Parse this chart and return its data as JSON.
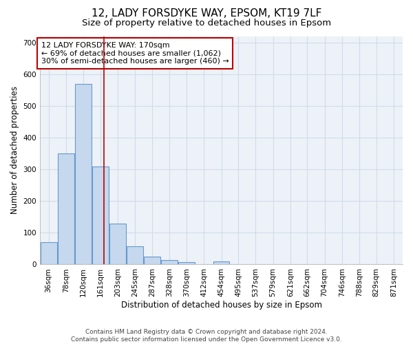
{
  "title_line1": "12, LADY FORSDYKE WAY, EPSOM, KT19 7LF",
  "title_line2": "Size of property relative to detached houses in Epsom",
  "xlabel": "Distribution of detached houses by size in Epsom",
  "ylabel": "Number of detached properties",
  "bar_color": "#c5d8ee",
  "bar_edge_color": "#6699cc",
  "grid_color": "#d0dce8",
  "background_color": "#edf2f8",
  "annotation_box_color": "#bb0000",
  "annotation_text": "12 LADY FORSDYKE WAY: 170sqm\n← 69% of detached houses are smaller (1,062)\n30% of semi-detached houses are larger (460) →",
  "red_line_x": 170,
  "categories": [
    36,
    78,
    120,
    161,
    203,
    245,
    287,
    328,
    370,
    412,
    454,
    495,
    537,
    579,
    621,
    662,
    704,
    746,
    788,
    829,
    871
  ],
  "bin_width": 41,
  "values": [
    70,
    350,
    570,
    310,
    130,
    57,
    25,
    15,
    8,
    0,
    10,
    0,
    0,
    0,
    0,
    0,
    0,
    0,
    0,
    0,
    0
  ],
  "ylim": [
    0,
    720
  ],
  "yticks": [
    0,
    100,
    200,
    300,
    400,
    500,
    600,
    700
  ],
  "xlim_left": 15,
  "xlim_right": 893,
  "footnote": "Contains HM Land Registry data © Crown copyright and database right 2024.\nContains public sector information licensed under the Open Government Licence v3.0.",
  "title_fontsize": 11,
  "subtitle_fontsize": 9.5,
  "axis_label_fontsize": 8.5,
  "tick_fontsize": 7.5,
  "annotation_fontsize": 8,
  "footnote_fontsize": 6.5
}
